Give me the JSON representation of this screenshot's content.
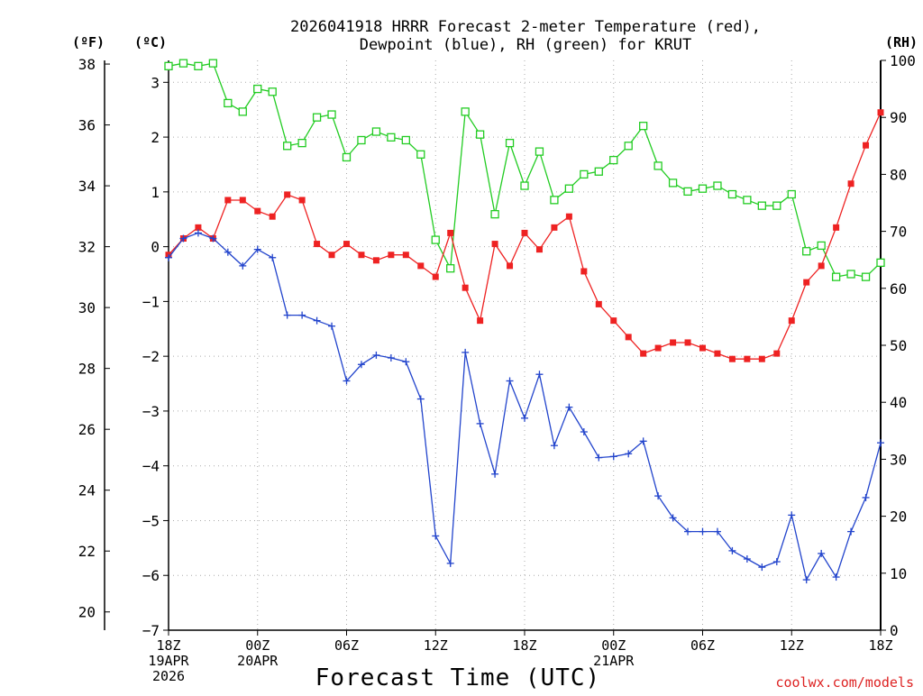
{
  "chart_data": {
    "type": "line",
    "title_line1": "2026041918 HRRR Forecast 2-meter Temperature (red),",
    "title_line2": "Dewpoint (blue), RH (green) for KRUT",
    "left_unit_f": "(ºF)",
    "left_unit_c": "(ºC)",
    "right_unit": "(RH)",
    "xlabel": "Forecast Time (UTC)",
    "credit": "coolwx.com/models",
    "x_hours": [
      0,
      1,
      2,
      3,
      4,
      5,
      6,
      7,
      8,
      9,
      10,
      11,
      12,
      13,
      14,
      15,
      16,
      17,
      18,
      19,
      20,
      21,
      22,
      23,
      24,
      25,
      26,
      27,
      28,
      29,
      30,
      31,
      32,
      33,
      34,
      35,
      36,
      37,
      38,
      39,
      40,
      41,
      42,
      43,
      44,
      45,
      46,
      47,
      48
    ],
    "x_ticks": [
      {
        "hour": 0,
        "lines": [
          "18Z",
          "19APR",
          "2026"
        ]
      },
      {
        "hour": 6,
        "lines": [
          "00Z",
          "20APR"
        ]
      },
      {
        "hour": 12,
        "lines": [
          "06Z"
        ]
      },
      {
        "hour": 18,
        "lines": [
          "12Z"
        ]
      },
      {
        "hour": 24,
        "lines": [
          "18Z"
        ]
      },
      {
        "hour": 30,
        "lines": [
          "00Z",
          "21APR"
        ]
      },
      {
        "hour": 36,
        "lines": [
          "06Z"
        ]
      },
      {
        "hour": 42,
        "lines": [
          "12Z"
        ]
      },
      {
        "hour": 48,
        "lines": [
          "18Z"
        ]
      }
    ],
    "xlim": [
      0,
      48
    ],
    "ylim_c": [
      -7,
      3.4
    ],
    "ylim_rh": [
      0,
      100
    ],
    "yticks_c": [
      "3",
      "2",
      "1",
      "0",
      "−1",
      "−2",
      "−3",
      "−4",
      "−5",
      "−6",
      "−7"
    ],
    "yticks_f": [
      "38",
      "36",
      "34",
      "32",
      "30",
      "28",
      "26",
      "24",
      "22",
      "20"
    ],
    "yticks_rh": [
      "100",
      "90",
      "80",
      "70",
      "60",
      "50",
      "40",
      "30",
      "20",
      "10",
      "0"
    ],
    "grid": true,
    "series": [
      {
        "name": "Temperature",
        "color": "#ee2222",
        "marker": "filled-square",
        "axis": "celsius",
        "values": [
          -0.15,
          0.15,
          0.35,
          0.15,
          0.85,
          0.85,
          0.65,
          0.55,
          0.95,
          0.85,
          0.05,
          -0.15,
          0.05,
          -0.15,
          -0.25,
          -0.15,
          -0.15,
          -0.35,
          -0.55,
          0.25,
          -0.75,
          -1.35,
          0.05,
          -0.35,
          0.25,
          -0.05,
          0.35,
          0.55,
          -0.45,
          -1.05,
          -1.35,
          -1.65,
          -1.95,
          -1.85,
          -1.75,
          -1.75,
          -1.85,
          -1.95,
          -2.05,
          -2.05,
          -2.05,
          -1.95,
          -1.35,
          -0.65,
          -0.35,
          0.35,
          1.15,
          1.85,
          2.45
        ]
      },
      {
        "name": "Dewpoint",
        "color": "#2244cc",
        "marker": "plus",
        "axis": "celsius",
        "values": [
          -0.2,
          0.15,
          0.25,
          0.15,
          -0.1,
          -0.35,
          -0.05,
          -0.2,
          -1.25,
          -1.25,
          -1.35,
          -1.45,
          -2.45,
          -2.15,
          -1.98,
          -2.03,
          -2.1,
          -2.78,
          -5.28,
          -5.78,
          -1.93,
          -3.23,
          -4.15,
          -2.45,
          -3.13,
          -2.33,
          -3.63,
          -2.93,
          -3.38,
          -3.85,
          -3.83,
          -3.78,
          -3.55,
          -4.55,
          -4.95,
          -5.2,
          -5.2,
          -5.2,
          -5.55,
          -5.7,
          -5.85,
          -5.75,
          -4.9,
          -6.08,
          -5.6,
          -6.03,
          -5.2,
          -4.58,
          -3.58
        ]
      },
      {
        "name": "RH",
        "color": "#22cc22",
        "marker": "open-square",
        "axis": "rh",
        "values": [
          99,
          99.5,
          99,
          99.5,
          92.5,
          91,
          95,
          94.5,
          85,
          85.5,
          90,
          90.5,
          83,
          86,
          87.5,
          86.5,
          86,
          83.5,
          68.5,
          63.5,
          91,
          87,
          73,
          85.5,
          78,
          84,
          75.5,
          77.5,
          80,
          80.5,
          82.5,
          85,
          88.5,
          81.5,
          78.5,
          77,
          77.5,
          78,
          76.5,
          75.5,
          74.5,
          74.5,
          76.5,
          66.5,
          67.5,
          62,
          62.5,
          62,
          64.5
        ]
      }
    ]
  }
}
